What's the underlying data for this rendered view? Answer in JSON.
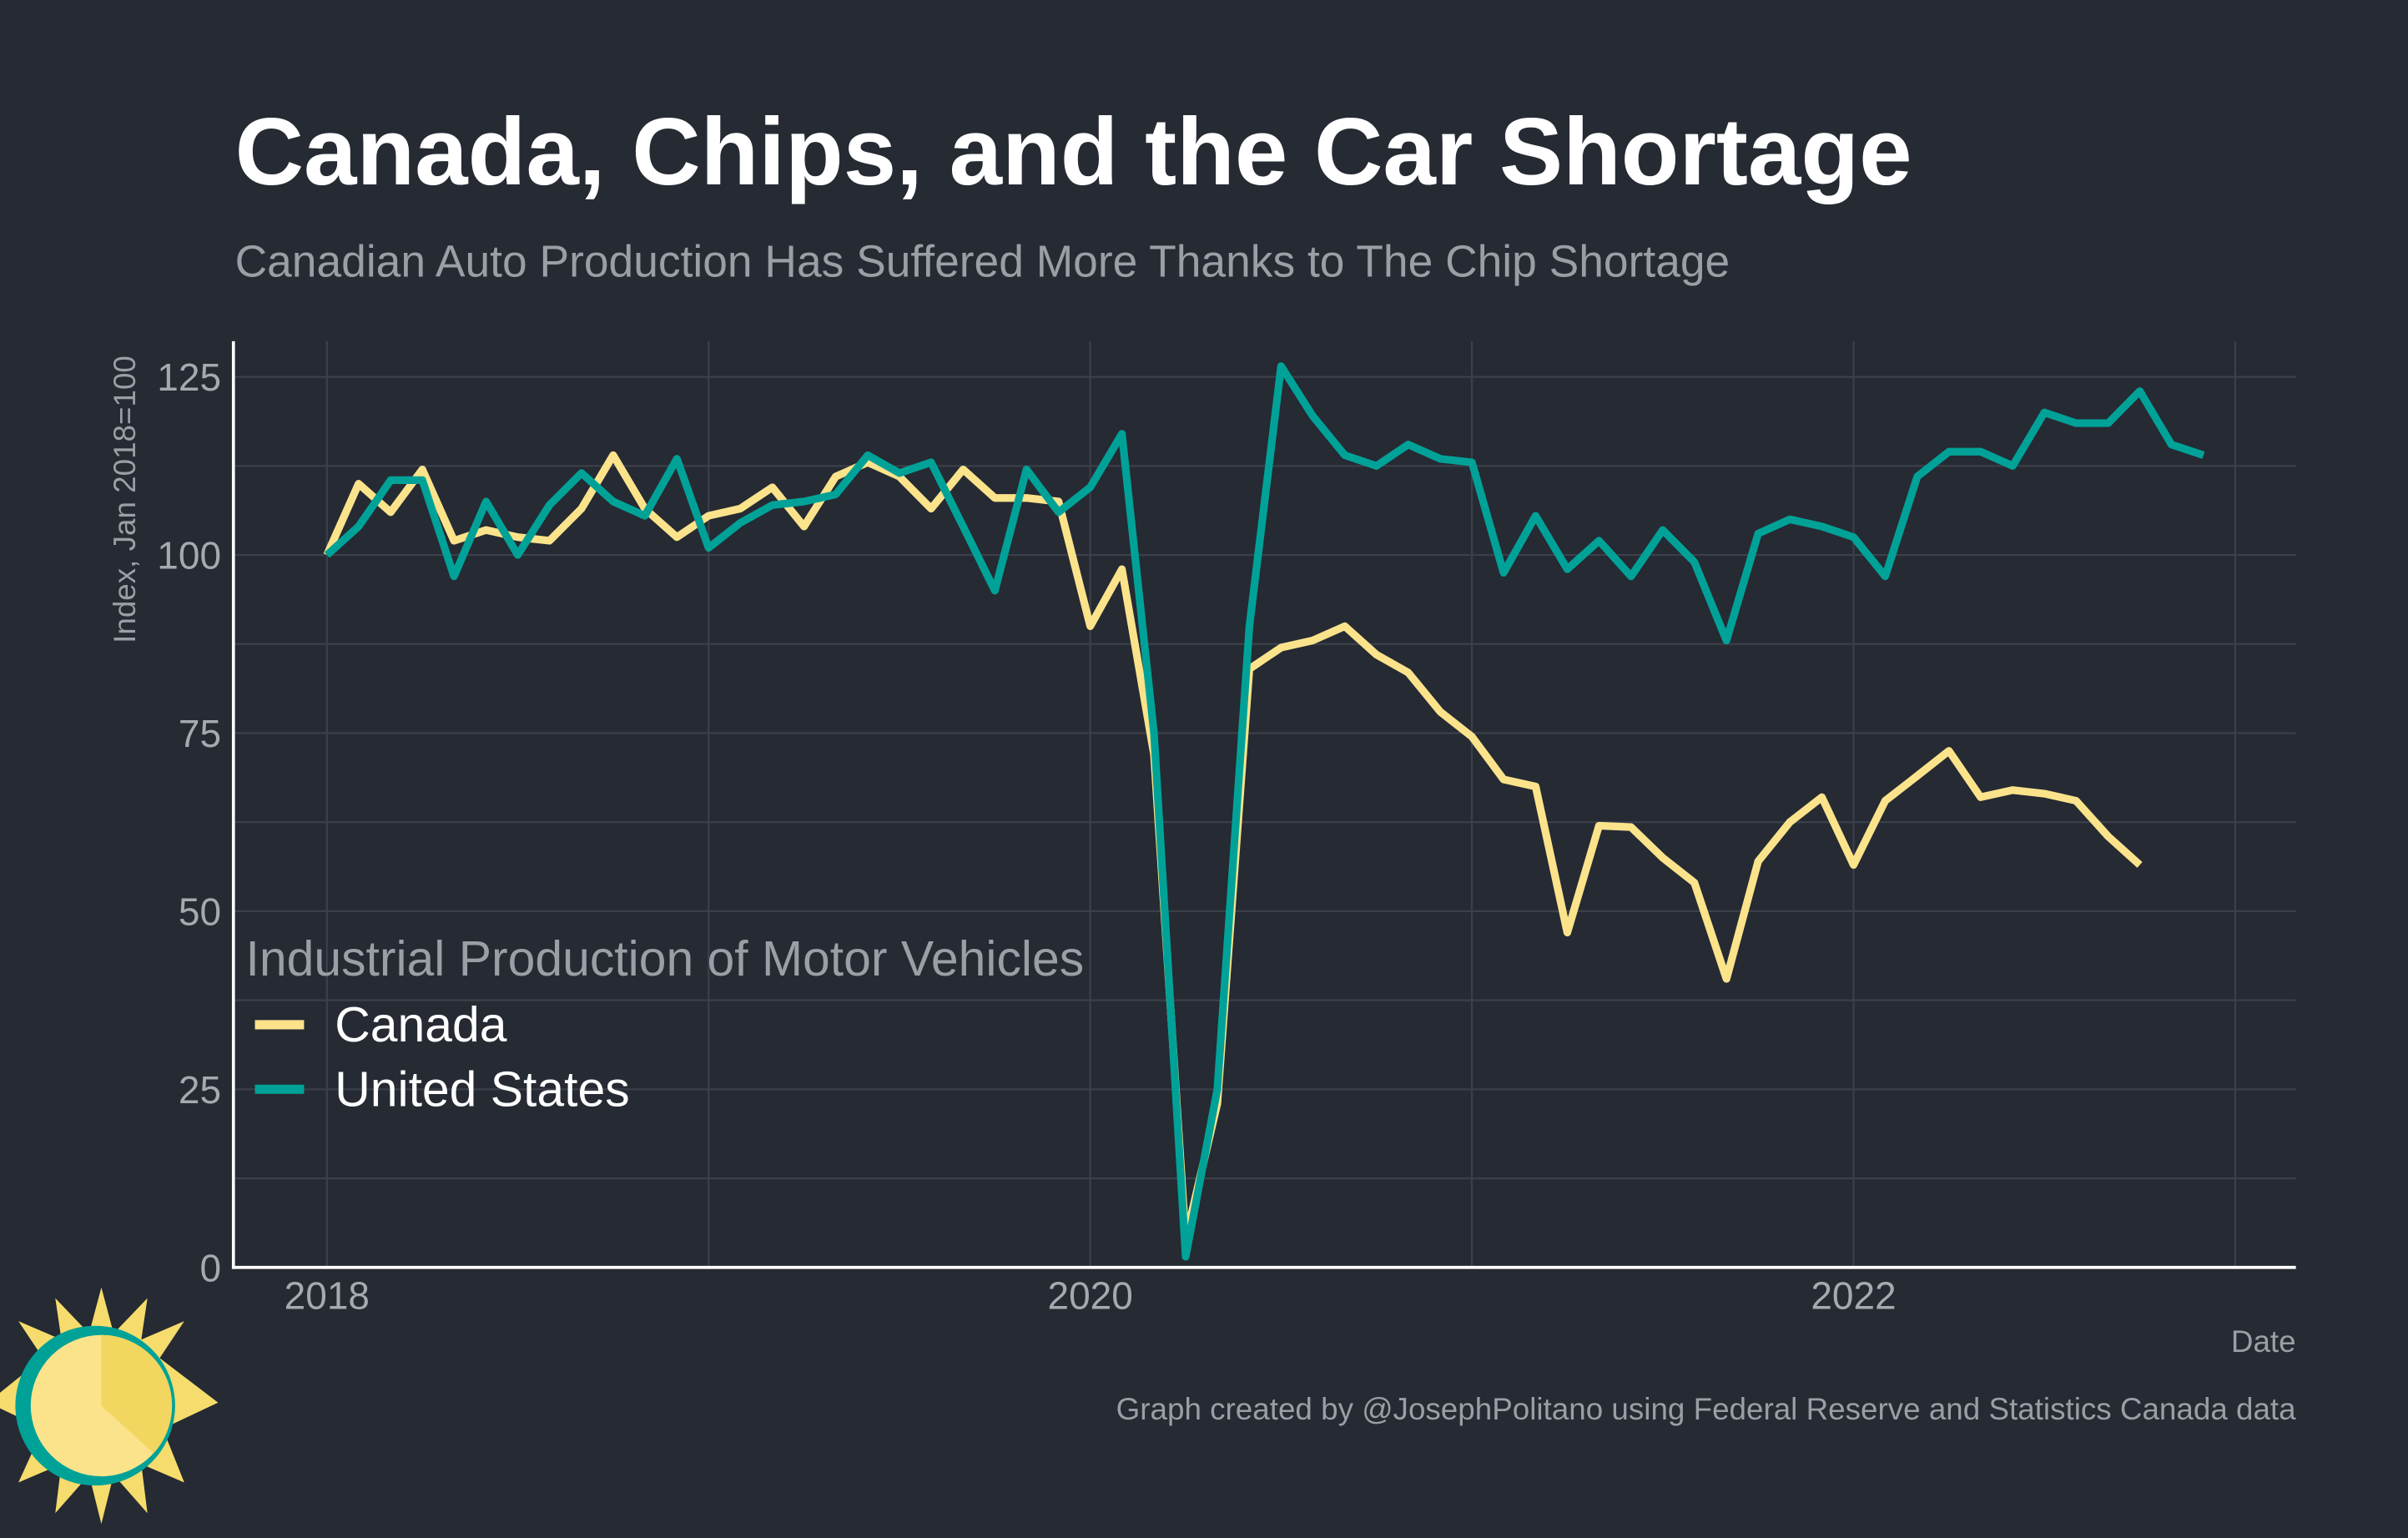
{
  "chart_data": {
    "type": "line",
    "title": "Canada, Chips, and the Car Shortage",
    "subtitle": "Canadian Auto Production Has Suffered More Thanks to The Chip Shortage",
    "y_label": "Index, Jan 2018=100",
    "x_label": "Date",
    "caption": "Graph created by @JosephPolitano using Federal Reserve and Statistics Canada data",
    "legend_title": "Industrial Production of Motor Vehicles",
    "legend": "lower left",
    "grid": true,
    "x": [
      2018,
      2018.083,
      2018.167,
      2018.25,
      2018.333,
      2018.417,
      2018.5,
      2018.583,
      2018.667,
      2018.75,
      2018.833,
      2018.917,
      2019,
      2019.083,
      2019.167,
      2019.25,
      2019.333,
      2019.417,
      2019.5,
      2019.583,
      2019.667,
      2019.75,
      2019.833,
      2019.917,
      2020,
      2020.083,
      2020.167,
      2020.25,
      2020.333,
      2020.417,
      2020.5,
      2020.583,
      2020.667,
      2020.75,
      2020.833,
      2020.917,
      2021,
      2021.083,
      2021.167,
      2021.25,
      2021.333,
      2021.417,
      2021.5,
      2021.583,
      2021.667,
      2021.75,
      2021.833,
      2021.917,
      2022,
      2022.083,
      2022.167,
      2022.25,
      2022.333,
      2022.417,
      2022.5,
      2022.583,
      2022.667,
      2022.75,
      2022.833,
      2022.917
    ],
    "xlim": [
      2017.755,
      2023.159
    ],
    "xticks": [
      2018,
      2020,
      2022
    ],
    "xminor": [
      2019,
      2021,
      2023
    ],
    "ylim": [
      0,
      130
    ],
    "yticks": [
      0,
      25,
      50,
      75,
      100,
      125
    ],
    "yminor": [
      12.5,
      37.5,
      62.5,
      87.5,
      112.5
    ],
    "series": [
      {
        "name": "Canada",
        "color": "#fbe38b",
        "values": [
          100,
          110,
          106,
          112,
          102,
          103.5,
          102.5,
          102,
          106.5,
          114,
          106.5,
          102.5,
          105.5,
          106.5,
          109.5,
          104,
          111,
          113,
          111,
          106.5,
          112,
          108,
          108,
          107.5,
          90,
          98,
          72,
          4,
          23,
          84,
          87,
          88,
          90,
          86,
          83.5,
          78,
          74.5,
          68.5,
          67.5,
          47,
          62,
          61.8,
          57.5,
          54,
          40.5,
          57,
          62.5,
          66,
          56.5,
          65.5,
          69,
          72.5,
          66,
          67,
          66.5,
          65.5,
          60.5,
          56.5,
          null,
          null
        ]
      },
      {
        "name": "United States",
        "color": "#00a298",
        "values": [
          100,
          104,
          110.5,
          110.5,
          97,
          107.5,
          100,
          107,
          111.5,
          107.5,
          105.5,
          113.5,
          101,
          104.5,
          107,
          107.5,
          108.5,
          114,
          111.5,
          113,
          104,
          95,
          112,
          106,
          109.5,
          117,
          75,
          1.5,
          25,
          90,
          126.5,
          119.5,
          114,
          112.5,
          115.5,
          113.5,
          113,
          97.5,
          105.5,
          98,
          102,
          97,
          103.5,
          99,
          88,
          103,
          105,
          104,
          102.5,
          97,
          111,
          114.5,
          114.5,
          112.5,
          120,
          118.5,
          118.5,
          123,
          115.5,
          114
        ]
      }
    ]
  }
}
